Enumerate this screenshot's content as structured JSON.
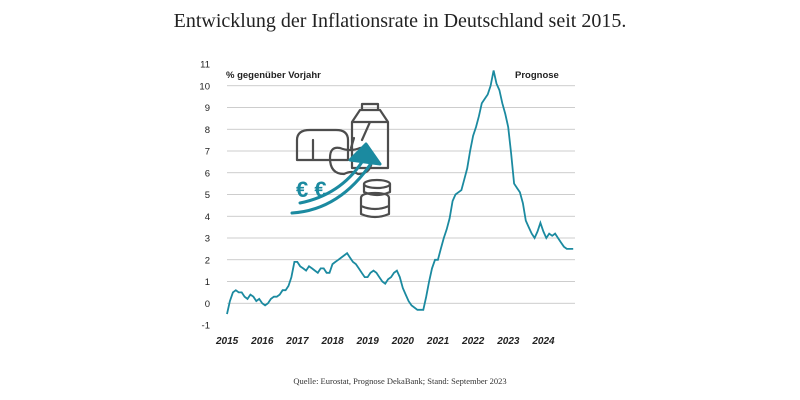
{
  "title": "Entwicklung der Inflationsrate in Deutschland seit 2015.",
  "source": "Quelle: Eurostat, Prognose DekaBank; Stand: September 2023",
  "colors": {
    "line": "#1b8aa0",
    "grid": "#bdbdbd",
    "icon_dark": "#4d4d4d",
    "icon_accent": "#1b8aa0"
  },
  "illustration": {
    "name": "inflation-groceries-illustration",
    "currency_text": "€ €"
  },
  "chart_data": {
    "type": "line",
    "title": "Entwicklung der Inflationsrate in Deutschland seit 2015.",
    "ylabel": "% gegenüber Vorjahr",
    "xlabel": "",
    "annotation": "Prognose",
    "ylim": [
      -1,
      11
    ],
    "yticks": [
      -1,
      0,
      1,
      2,
      3,
      4,
      5,
      6,
      7,
      8,
      9,
      10,
      11
    ],
    "xlim": [
      2015.0,
      2024.9
    ],
    "xticks": [
      "2015",
      "2016",
      "2017",
      "2018",
      "2019",
      "2020",
      "2021",
      "2022",
      "2023",
      "2024"
    ],
    "grid": "horizontal",
    "series": [
      {
        "x": [
          2015.0,
          2015.083,
          2015.167,
          2015.25,
          2015.333,
          2015.417,
          2015.5,
          2015.583,
          2015.667,
          2015.75,
          2015.833,
          2015.917,
          2016.0,
          2016.083,
          2016.167,
          2016.25,
          2016.333,
          2016.417,
          2016.5,
          2016.583,
          2016.667,
          2016.75,
          2016.833,
          2016.917,
          2017.0,
          2017.083,
          2017.167,
          2017.25,
          2017.333,
          2017.417,
          2017.5,
          2017.583,
          2017.667,
          2017.75,
          2017.833,
          2017.917,
          2018.0,
          2018.083,
          2018.167,
          2018.25,
          2018.333,
          2018.417,
          2018.5,
          2018.583,
          2018.667,
          2018.75,
          2018.833,
          2018.917,
          2019.0,
          2019.083,
          2019.167,
          2019.25,
          2019.333,
          2019.417,
          2019.5,
          2019.583,
          2019.667,
          2019.75,
          2019.833,
          2019.917,
          2020.0,
          2020.083,
          2020.167,
          2020.25,
          2020.333,
          2020.417,
          2020.5,
          2020.583,
          2020.667,
          2020.75,
          2020.833,
          2020.917,
          2021.0,
          2021.083,
          2021.167,
          2021.25,
          2021.333,
          2021.417,
          2021.5,
          2021.583,
          2021.667,
          2021.75,
          2021.833,
          2021.917,
          2022.0,
          2022.083,
          2022.167,
          2022.25,
          2022.333,
          2022.417,
          2022.5,
          2022.583,
          2022.667,
          2022.75,
          2022.833,
          2022.917,
          2023.0,
          2023.083,
          2023.167,
          2023.25,
          2023.333,
          2023.417,
          2023.5,
          2023.583,
          2023.667,
          2023.75,
          2023.833,
          2023.917,
          2024.0,
          2024.083,
          2024.167,
          2024.25,
          2024.333,
          2024.417,
          2024.5,
          2024.583,
          2024.667,
          2024.75,
          2024.85
        ],
        "values": [
          -0.5,
          0.1,
          0.5,
          0.6,
          0.5,
          0.5,
          0.3,
          0.2,
          0.4,
          0.3,
          0.1,
          0.2,
          0.0,
          -0.1,
          0.0,
          0.2,
          0.3,
          0.3,
          0.4,
          0.6,
          0.6,
          0.8,
          1.2,
          1.9,
          1.9,
          1.7,
          1.6,
          1.5,
          1.7,
          1.6,
          1.5,
          1.4,
          1.6,
          1.6,
          1.4,
          1.4,
          1.8,
          1.9,
          2.0,
          2.1,
          2.2,
          2.3,
          2.1,
          1.9,
          1.8,
          1.6,
          1.4,
          1.2,
          1.2,
          1.4,
          1.5,
          1.4,
          1.2,
          1.0,
          0.9,
          1.1,
          1.2,
          1.4,
          1.5,
          1.2,
          0.7,
          0.4,
          0.1,
          -0.1,
          -0.2,
          -0.3,
          -0.3,
          -0.3,
          0.3,
          1.0,
          1.6,
          2.0,
          2.0,
          2.5,
          3.0,
          3.4,
          3.9,
          4.7,
          5.0,
          5.1,
          5.2,
          5.7,
          6.2,
          7.0,
          7.7,
          8.1,
          8.6,
          9.2,
          9.4,
          9.6,
          10.0,
          10.7,
          10.1,
          9.8,
          9.2,
          8.7,
          8.1,
          6.9,
          5.5,
          5.3,
          5.1,
          4.6,
          3.8,
          3.5,
          3.2,
          3.0,
          3.3,
          3.7,
          3.3,
          3.0,
          3.2,
          3.1,
          3.2,
          3.0,
          2.8,
          2.6,
          2.5,
          2.5,
          2.5
        ]
      }
    ]
  }
}
